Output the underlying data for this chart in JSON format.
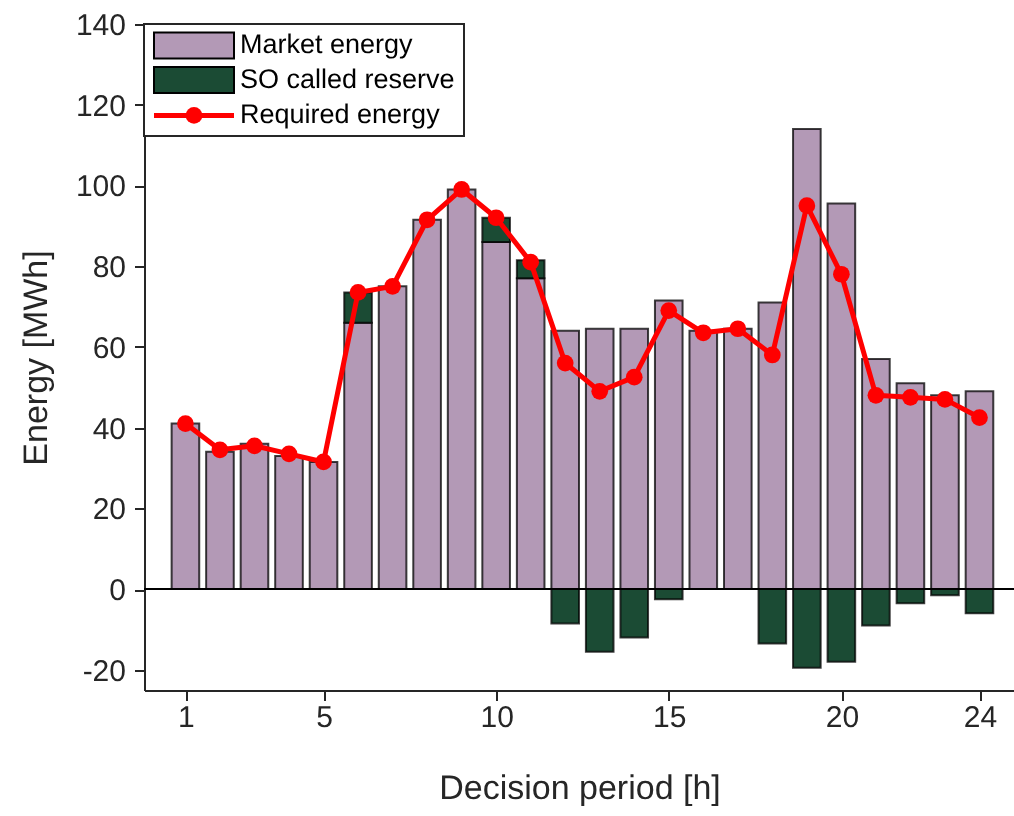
{
  "chart_data": {
    "type": "bar",
    "stacked": true,
    "xlabel": "Decision period [h]",
    "ylabel": "Energy [MWh]",
    "x": [
      1,
      2,
      3,
      4,
      5,
      6,
      7,
      8,
      9,
      10,
      11,
      12,
      13,
      14,
      15,
      16,
      17,
      18,
      19,
      20,
      21,
      22,
      23,
      24
    ],
    "xlim": [
      -0.2,
      25
    ],
    "xticks": [
      1,
      5,
      10,
      15,
      20,
      24
    ],
    "ylim": [
      -25,
      140
    ],
    "yticks": [
      -20,
      0,
      20,
      40,
      60,
      80,
      100,
      120,
      140
    ],
    "grid": false,
    "legend": "top left",
    "series": [
      {
        "name": "Market energy",
        "color": "#b399b6",
        "values": [
          41,
          34,
          36,
          33,
          31.5,
          66,
          75,
          91.5,
          99,
          86,
          77,
          64,
          64.5,
          64.5,
          71.5,
          64,
          64.5,
          71,
          114,
          95.5,
          57,
          51,
          48,
          49
        ]
      },
      {
        "name": "SO called reserve",
        "color": "#1b4b34",
        "values": [
          null,
          null,
          null,
          null,
          null,
          7.5,
          null,
          null,
          null,
          6,
          4.5,
          -8.5,
          -15.5,
          -12,
          -2.5,
          null,
          null,
          -13.5,
          -19.5,
          -18,
          -9,
          -3.5,
          -1.5,
          -6
        ]
      },
      {
        "name": "Required energy",
        "type": "line",
        "color": "#ff0000",
        "marker": "circle",
        "line_style": "solid",
        "values": [
          41,
          34.5,
          35.5,
          33.5,
          31.5,
          73.5,
          75,
          91.5,
          99,
          92,
          81,
          56,
          49,
          52.5,
          69,
          63.5,
          64.5,
          58,
          95,
          78,
          48,
          47.5,
          47,
          42.5
        ]
      }
    ],
    "ref_lines": [
      {
        "axis": "y",
        "value": 0,
        "color": "#000000"
      }
    ]
  }
}
